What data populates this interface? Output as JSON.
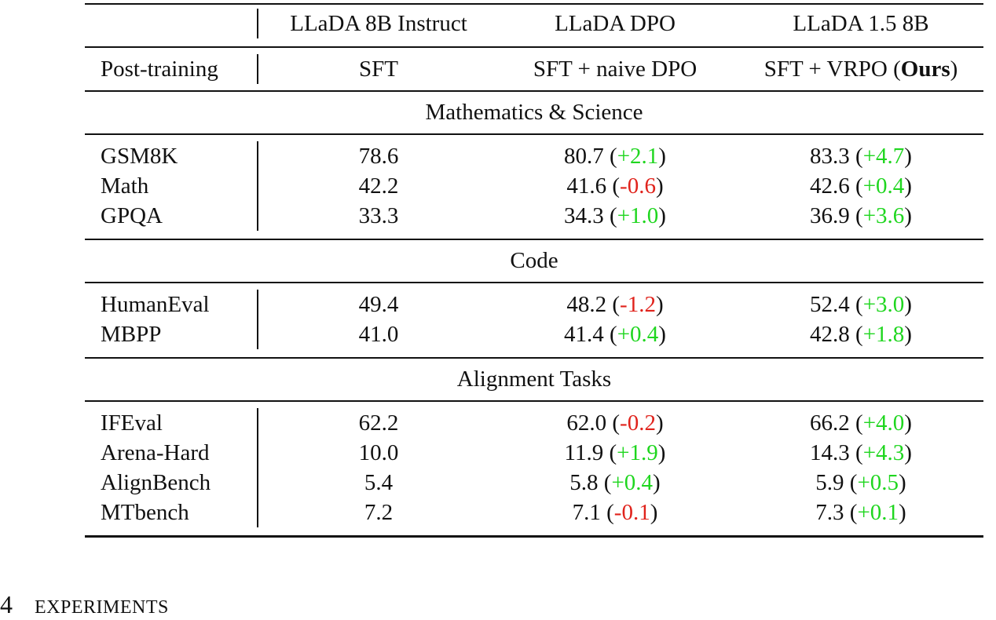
{
  "table": {
    "columns": [
      "LLaDA 8B Instruct",
      "LLaDA DPO",
      "LLaDA 1.5 8B"
    ],
    "post_training_label": "Post-training",
    "methods": [
      {
        "pre": "SFT"
      },
      {
        "pre": "SFT + naive DPO"
      },
      {
        "pre": "SFT + VRPO (",
        "bold": "Ours",
        "post": ")"
      }
    ],
    "brackets": [
      "(",
      ")"
    ],
    "sections": [
      {
        "title": "Mathematics & Science",
        "rows": [
          {
            "label": "GSM8K",
            "base": "78.6",
            "cells": [
              {
                "value": "80.7",
                "delta": "+2.1",
                "color": "#1fd61f"
              },
              {
                "value": "83.3",
                "delta": "+4.7",
                "color": "#1fd61f"
              }
            ]
          },
          {
            "label": "Math",
            "base": "42.2",
            "cells": [
              {
                "value": "41.6",
                "delta": "-0.6",
                "color": "#e0231c"
              },
              {
                "value": "42.6",
                "delta": "+0.4",
                "color": "#1fd61f"
              }
            ]
          },
          {
            "label": "GPQA",
            "base": "33.3",
            "cells": [
              {
                "value": "34.3",
                "delta": "+1.0",
                "color": "#1fd61f"
              },
              {
                "value": "36.9",
                "delta": "+3.6",
                "color": "#1fd61f"
              }
            ]
          }
        ]
      },
      {
        "title": "Code",
        "rows": [
          {
            "label": "HumanEval",
            "base": "49.4",
            "cells": [
              {
                "value": "48.2",
                "delta": "-1.2",
                "color": "#e0231c"
              },
              {
                "value": "52.4",
                "delta": "+3.0",
                "color": "#1fd61f"
              }
            ]
          },
          {
            "label": "MBPP",
            "base": "41.0",
            "cells": [
              {
                "value": "41.4",
                "delta": "+0.4",
                "color": "#1fd61f"
              },
              {
                "value": "42.8",
                "delta": "+1.8",
                "color": "#1fd61f"
              }
            ]
          }
        ]
      },
      {
        "title": "Alignment Tasks",
        "rows": [
          {
            "label": "IFEval",
            "base": "62.2",
            "cells": [
              {
                "value": "62.0",
                "delta": "-0.2",
                "color": "#e0231c"
              },
              {
                "value": "66.2",
                "delta": "+4.0",
                "color": "#1fd61f"
              }
            ]
          },
          {
            "label": "Arena-Hard",
            "base": "10.0",
            "cells": [
              {
                "value": "11.9",
                "delta": "+1.9",
                "color": "#1fd61f"
              },
              {
                "value": "14.3",
                "delta": "+4.3",
                "color": "#1fd61f"
              }
            ]
          },
          {
            "label": "AlignBench",
            "base": "5.4",
            "cells": [
              {
                "value": "5.8",
                "delta": "+0.4",
                "color": "#1fd61f"
              },
              {
                "value": "5.9",
                "delta": "+0.5",
                "color": "#1fd61f"
              }
            ]
          },
          {
            "label": "MTbench",
            "base": "7.2",
            "cells": [
              {
                "value": "7.1",
                "delta": "-0.1",
                "color": "#e0231c"
              },
              {
                "value": "7.3",
                "delta": "+0.1",
                "color": "#1fd61f"
              }
            ]
          }
        ]
      }
    ]
  },
  "heading": {
    "number": "4",
    "title": "EXPERIMENTS"
  }
}
